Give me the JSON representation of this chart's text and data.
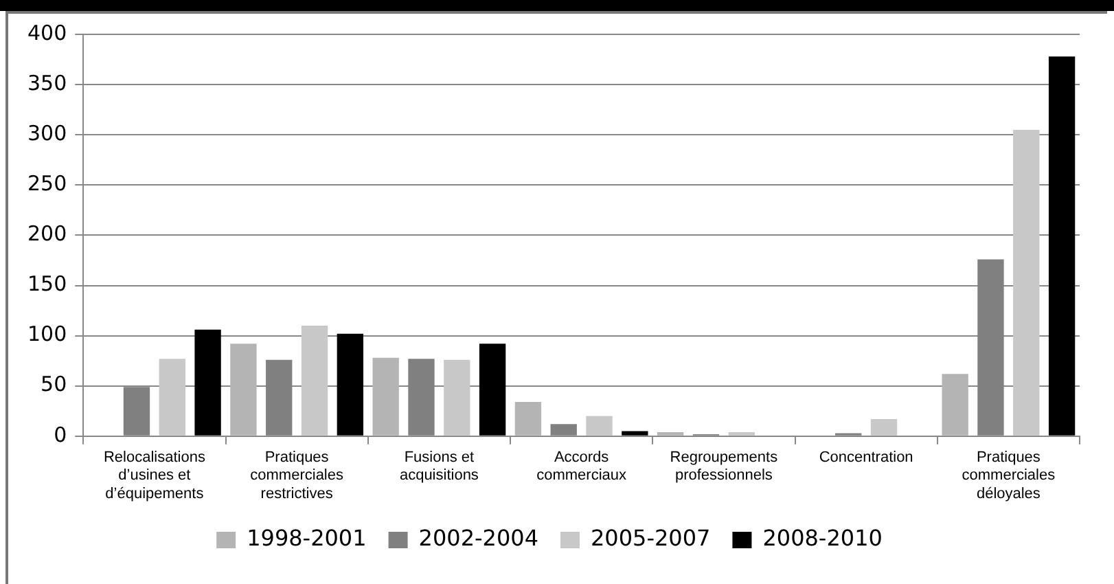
{
  "chart_data": {
    "type": "bar",
    "categories": [
      "Relocalisations d’usines et d’équipements",
      "Pratiques commerciales restrictives",
      "Fusions et acquisitions",
      "Accords commerciaux",
      "Regroupements professionnels",
      "Concentration",
      "Pratiques commerciales déloyales"
    ],
    "series": [
      {
        "name": "1998-2001",
        "color": "#b4b4b4",
        "values": [
          0,
          92,
          78,
          34,
          4,
          0,
          62
        ]
      },
      {
        "name": "2002-2004",
        "color": "#808080",
        "values": [
          49,
          76,
          77,
          12,
          2,
          3,
          176
        ]
      },
      {
        "name": "2005-2007",
        "color": "#c8c8c8",
        "values": [
          77,
          110,
          76,
          20,
          4,
          17,
          305
        ]
      },
      {
        "name": "2008-2010",
        "color": "#000000",
        "values": [
          106,
          102,
          92,
          5,
          0,
          0,
          378
        ]
      }
    ],
    "ylim": [
      0,
      400
    ],
    "yticks": [
      0,
      50,
      100,
      150,
      200,
      250,
      300,
      350,
      400
    ],
    "grid": "y",
    "legend": "bottom"
  }
}
